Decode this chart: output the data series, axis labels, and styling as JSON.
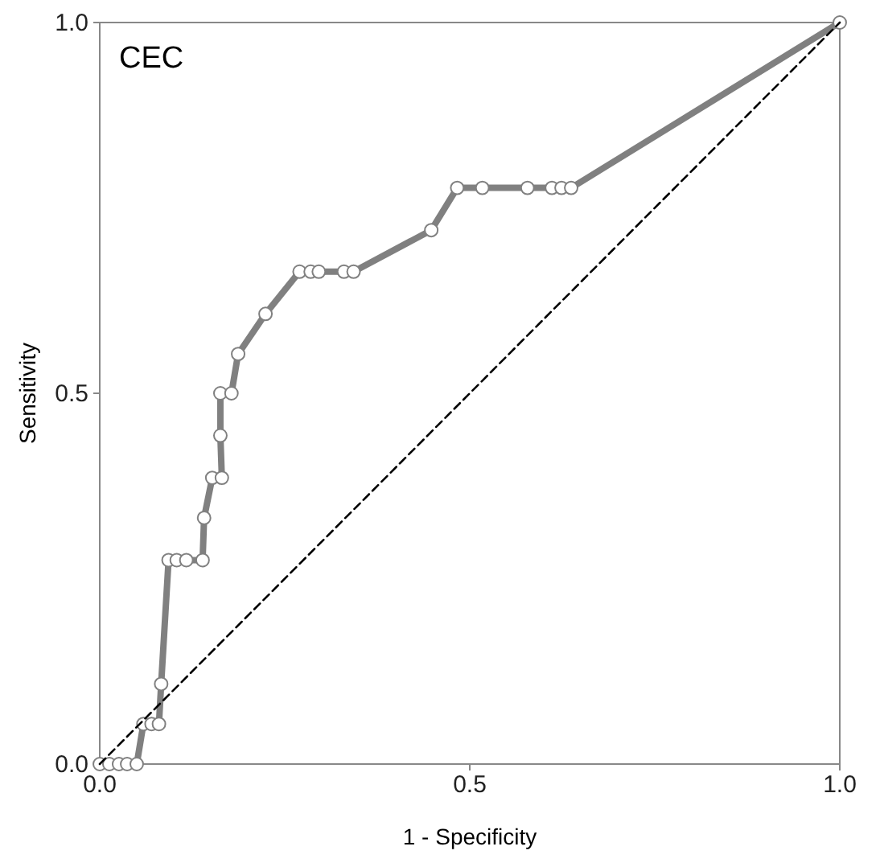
{
  "chart_data": {
    "type": "line",
    "title": "CEC",
    "xlabel": "1 - Specificity",
    "ylabel": "Sensitivity",
    "xlim": [
      0,
      1
    ],
    "ylim": [
      0,
      1
    ],
    "xticks": [
      {
        "value": 0,
        "label": "0.0"
      },
      {
        "value": 0.5,
        "label": "0.5"
      },
      {
        "value": 1,
        "label": "1.0"
      }
    ],
    "yticks": [
      {
        "value": 0,
        "label": "0.0"
      },
      {
        "value": 0.5,
        "label": "0.5"
      },
      {
        "value": 1,
        "label": "1.0"
      }
    ],
    "grid": false,
    "series": [
      {
        "color": "#808080",
        "marker": "circle",
        "line_style": "solid",
        "x": [
          0,
          0.013,
          0.026,
          0.037,
          0.05,
          0.059,
          0.07,
          0.08,
          0.083,
          0.093,
          0.104,
          0.117,
          0.139,
          0.141,
          0.152,
          0.165,
          0.163,
          0.163,
          0.178,
          0.187,
          0.224,
          0.27,
          0.285,
          0.296,
          0.33,
          0.343,
          0.448,
          0.483,
          0.517,
          0.578,
          0.611,
          0.624,
          0.637,
          1
        ],
        "values": [
          0,
          0,
          0,
          0,
          0,
          0.054,
          0.054,
          0.054,
          0.108,
          0.275,
          0.275,
          0.275,
          0.275,
          0.332,
          0.386,
          0.386,
          0.443,
          0.5,
          0.5,
          0.553,
          0.607,
          0.664,
          0.664,
          0.664,
          0.664,
          0.664,
          0.72,
          0.777,
          0.777,
          0.777,
          0.777,
          0.777,
          0.777,
          1
        ]
      },
      {
        "color": "#000000",
        "marker": "none",
        "line_style": "dashed",
        "x": [
          0,
          1
        ],
        "values": [
          0,
          1
        ]
      }
    ]
  }
}
